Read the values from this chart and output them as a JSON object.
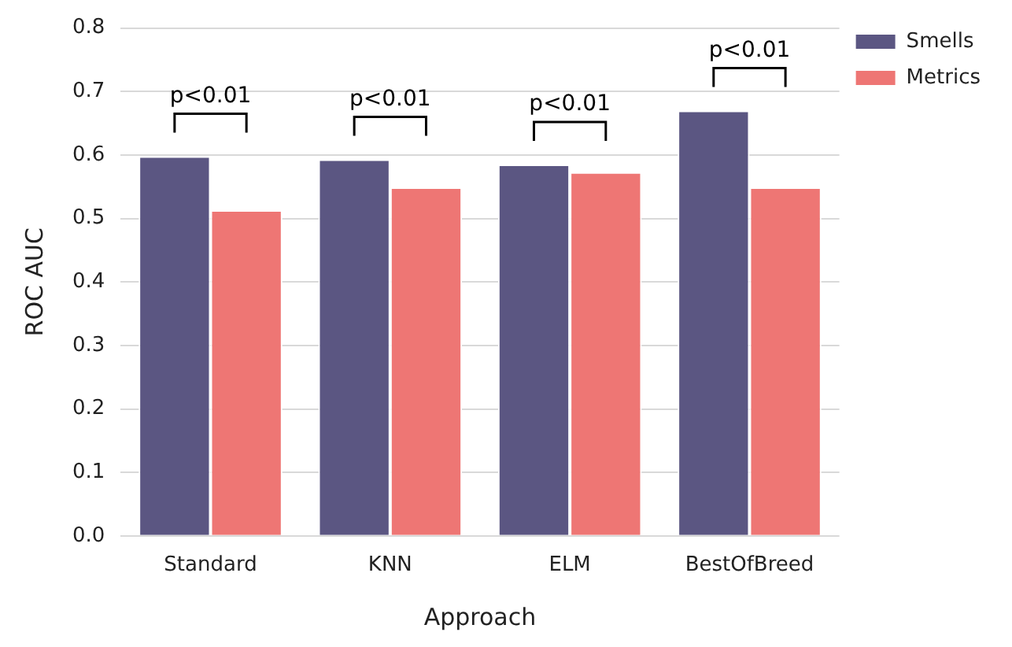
{
  "chart_data": {
    "type": "bar",
    "xlabel": "Approach",
    "ylabel": "ROC AUC",
    "categories": [
      "Standard",
      "KNN",
      "ELM",
      "BestOfBreed"
    ],
    "series": [
      {
        "name": "Smells",
        "color": "#5b5682",
        "values": [
          0.598,
          0.593,
          0.585,
          0.67
        ]
      },
      {
        "name": "Metrics",
        "color": "#ee7674",
        "values": [
          0.513,
          0.549,
          0.573,
          0.549
        ]
      }
    ],
    "ylim": [
      0,
      0.8
    ],
    "yticks": [
      {
        "value": 0,
        "label": "0.0"
      },
      0.1,
      0.2,
      0.3,
      0.4,
      0.5,
      0.6,
      0.7,
      0.8
    ],
    "grid": "y",
    "legend": "top right",
    "annotations": [
      "p<0.01",
      "p<0.01",
      "p<0.01",
      "p<0.01"
    ]
  }
}
